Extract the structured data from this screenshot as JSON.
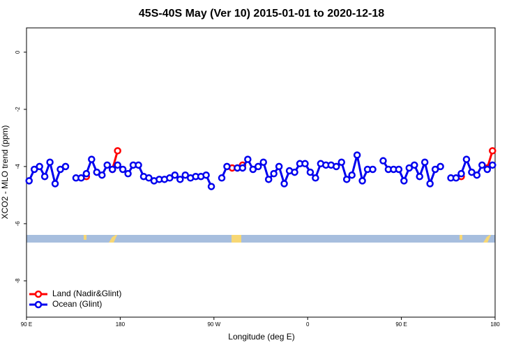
{
  "chart_data": {
    "type": "line",
    "title": "45S-40S May (Ver 10)   2015-01-01 to 2020-12-18",
    "x_label": "Longitude (deg E)",
    "y_label": "XCO2 - MLO trend (ppm)",
    "xlim": [
      90,
      540
    ],
    "ylim": [
      -9.27,
      0.85
    ],
    "xticks": [
      {
        "value": 90,
        "label": "90 E"
      },
      {
        "value": 180,
        "label": "180"
      },
      {
        "value": 270,
        "label": "90 W"
      },
      {
        "value": 360,
        "label": "0"
      },
      {
        "value": 450,
        "label": "90 E"
      },
      {
        "value": 540,
        "label": "180"
      }
    ],
    "yticks": [
      0,
      -2,
      -4,
      -6,
      -8
    ],
    "legend_position": "bottom-left",
    "x": [
      92.5,
      97.5,
      102.5,
      107.5,
      112.5,
      117.5,
      122.5,
      127.5,
      132.5,
      137.5,
      142.5,
      147.5,
      152.5,
      157.5,
      162.5,
      167.5,
      172.5,
      177.5,
      182.5,
      187.5,
      192.5,
      197.5,
      202.5,
      207.5,
      212.5,
      217.5,
      222.5,
      227.5,
      232.5,
      237.5,
      242.5,
      247.5,
      252.5,
      257.5,
      262.5,
      267.5,
      272.5,
      277.5,
      282.5,
      287.5,
      292.5,
      297.5,
      302.5,
      307.5,
      312.5,
      317.5,
      322.5,
      327.5,
      332.5,
      337.5,
      342.5,
      347.5,
      352.5,
      357.5,
      362.5,
      367.5,
      372.5,
      377.5,
      382.5,
      387.5,
      392.5,
      397.5,
      402.5,
      407.5,
      412.5,
      417.5,
      422.5,
      427.5,
      432.5,
      437.5,
      442.5,
      447.5,
      452.5,
      457.5,
      462.5,
      467.5,
      472.5,
      477.5,
      482.5,
      487.5,
      492.5,
      497.5,
      502.5,
      507.5,
      512.5,
      517.5,
      522.5,
      527.5,
      532.5,
      537.5
    ],
    "series": [
      {
        "name": "Land (Nadir&Glint)",
        "color": "#ff0000",
        "values": [
          null,
          null,
          null,
          null,
          null,
          null,
          null,
          null,
          null,
          null,
          null,
          -4.35,
          null,
          null,
          null,
          null,
          -4.1,
          -3.45,
          null,
          null,
          null,
          null,
          null,
          null,
          null,
          null,
          null,
          null,
          null,
          null,
          null,
          null,
          null,
          null,
          null,
          null,
          null,
          null,
          null,
          -4.05,
          -4.05,
          -3.95,
          null,
          null,
          null,
          null,
          null,
          null,
          null,
          null,
          null,
          null,
          null,
          null,
          null,
          null,
          null,
          null,
          null,
          null,
          null,
          null,
          null,
          null,
          null,
          null,
          null,
          null,
          null,
          null,
          null,
          null,
          null,
          null,
          null,
          null,
          null,
          null,
          null,
          null,
          null,
          null,
          null,
          -4.35,
          null,
          null,
          null,
          null,
          -4.05,
          -3.45
        ]
      },
      {
        "name": "Ocean (Glint)",
        "color": "#0000ee",
        "values": [
          -4.5,
          -4.1,
          -4.0,
          -4.35,
          -3.85,
          -4.6,
          -4.1,
          -4.0,
          null,
          -4.4,
          -4.4,
          -4.25,
          -3.75,
          -4.2,
          -4.3,
          -3.95,
          -4.1,
          -3.95,
          -4.1,
          -4.25,
          -3.95,
          -3.95,
          -4.35,
          -4.4,
          -4.5,
          -4.45,
          -4.45,
          -4.4,
          -4.3,
          -4.45,
          -4.3,
          -4.4,
          -4.35,
          -4.35,
          -4.3,
          -4.7,
          null,
          -4.4,
          -4.0,
          null,
          -4.05,
          -4.05,
          -3.75,
          -4.1,
          -4.0,
          -3.85,
          -4.45,
          -4.25,
          -4.0,
          -4.6,
          -4.15,
          -4.2,
          -3.9,
          -3.9,
          -4.2,
          -4.4,
          -3.9,
          -3.95,
          -3.95,
          -4.0,
          -3.85,
          -4.45,
          -4.3,
          -3.6,
          -4.5,
          -4.1,
          -4.1,
          null,
          -3.8,
          -4.1,
          -4.1,
          -4.1,
          -4.5,
          -4.05,
          -3.95,
          -4.35,
          -3.85,
          -4.6,
          -4.1,
          -4.0,
          null,
          -4.4,
          -4.4,
          -4.25,
          -3.75,
          -4.2,
          -4.3,
          -3.95,
          -4.1,
          -3.95
        ]
      }
    ]
  }
}
